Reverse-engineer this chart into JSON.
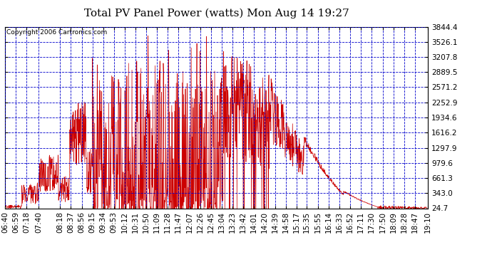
{
  "title": "Total PV Panel Power (watts) Mon Aug 14 19:27",
  "copyright": "Copyright 2006 Cartronics.com",
  "y_ticks": [
    24.7,
    343.0,
    661.3,
    979.6,
    1297.9,
    1616.2,
    1934.6,
    2252.9,
    2571.2,
    2889.5,
    3207.8,
    3526.1,
    3844.4
  ],
  "x_labels": [
    "06:40",
    "06:59",
    "07:18",
    "07:40",
    "08:18",
    "08:37",
    "08:56",
    "09:15",
    "09:34",
    "09:53",
    "10:12",
    "10:31",
    "10:50",
    "11:09",
    "11:28",
    "11:47",
    "12:07",
    "12:26",
    "12:45",
    "13:04",
    "13:23",
    "13:42",
    "14:01",
    "14:20",
    "14:39",
    "14:58",
    "15:17",
    "15:35",
    "15:55",
    "16:14",
    "16:33",
    "16:52",
    "17:11",
    "17:30",
    "17:50",
    "18:09",
    "18:28",
    "18:47",
    "19:10"
  ],
  "bg_color": "#ffffff",
  "plot_bg_color": "#ffffff",
  "grid_color": "#0000cc",
  "line_color": "#cc0000",
  "title_fontsize": 11,
  "copyright_fontsize": 6.5,
  "tick_fontsize": 7.5,
  "ytick_fontsize": 7.5
}
